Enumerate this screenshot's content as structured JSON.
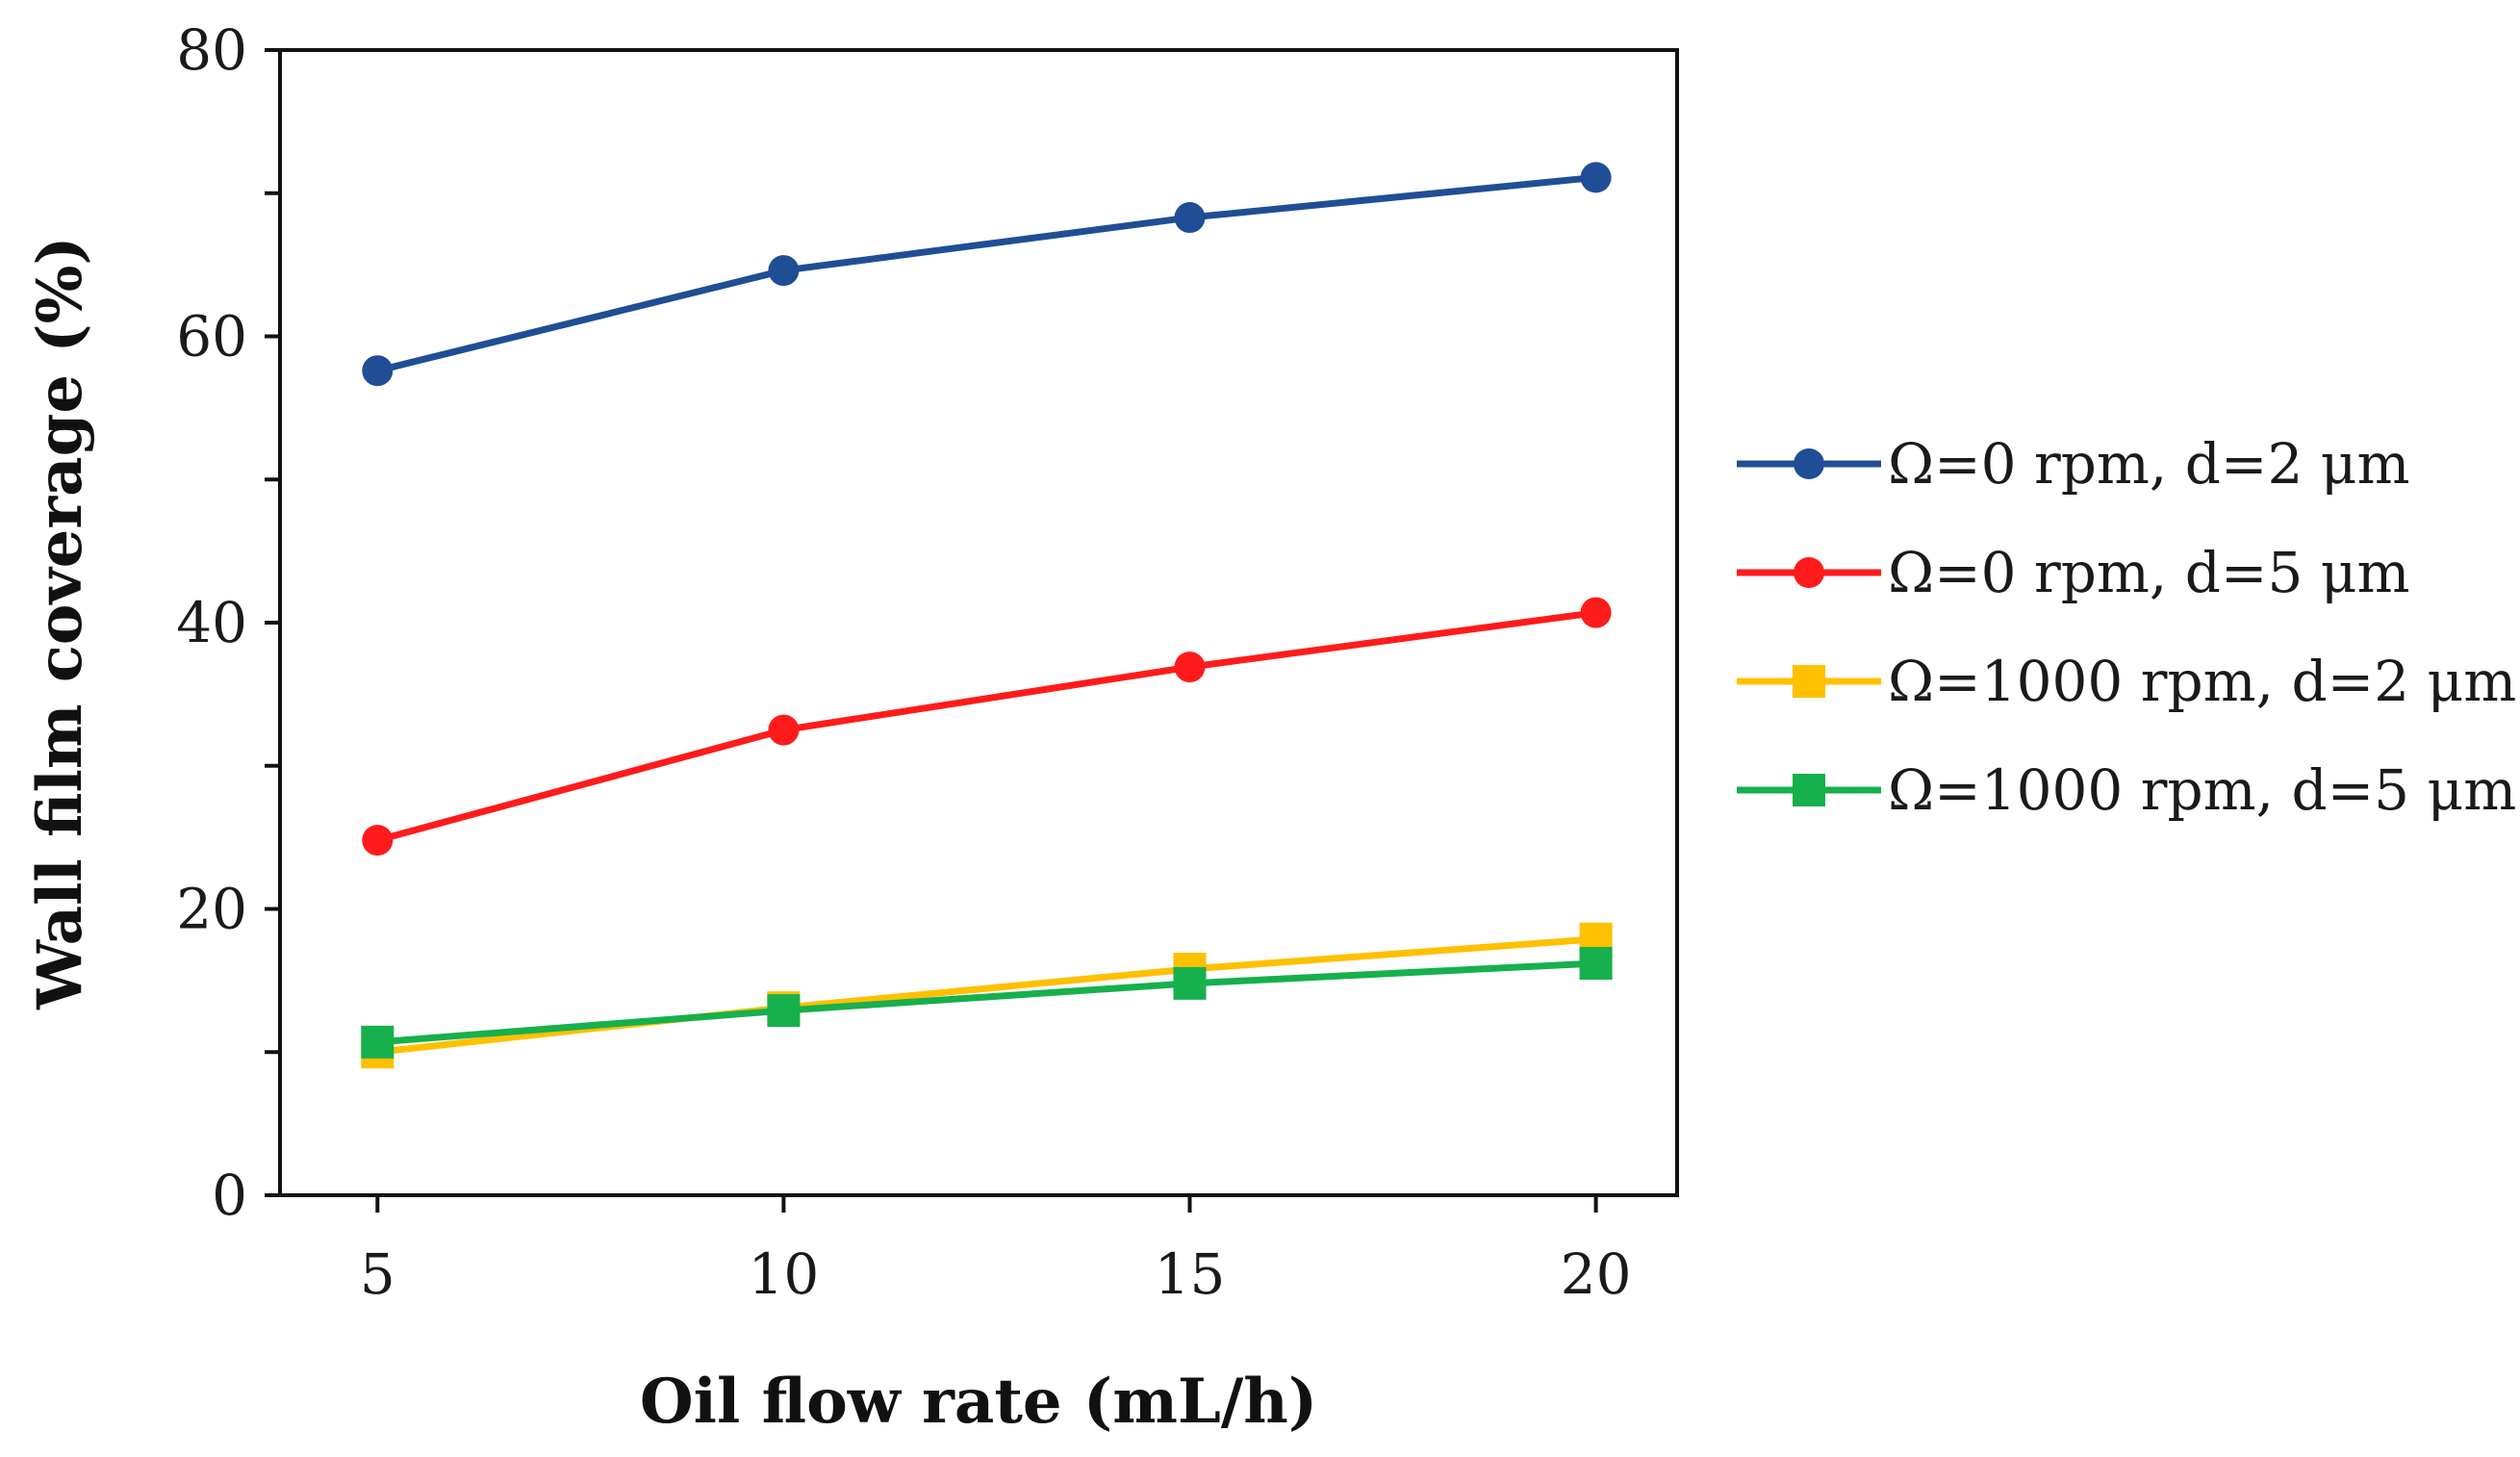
{
  "chart_data": {
    "type": "line",
    "title": "",
    "xlabel": "Oil flow rate (mL/h)",
    "ylabel": "Wall film coverage (%)",
    "x": [
      5,
      10,
      15,
      20
    ],
    "xticks": [
      "5",
      "10",
      "15",
      "20"
    ],
    "yticks": [
      "0",
      "20",
      "40",
      "60",
      "80"
    ],
    "xlim": [
      3.8,
      21
    ],
    "ylim": [
      0,
      80
    ],
    "grid": false,
    "legend_position": "right",
    "series": [
      {
        "name": "Ω=0 rpm, d=2 μm",
        "values": [
          57.6,
          64.6,
          68.3,
          71.1
        ],
        "color": "#1f4e96",
        "marker": "circle"
      },
      {
        "name": "Ω=0 rpm, d=5 μm",
        "values": [
          24.8,
          32.5,
          36.9,
          40.7
        ],
        "color": "#ff1b1b",
        "marker": "circle"
      },
      {
        "name": "Ω=1000 rpm, d=2 μm",
        "values": [
          10.0,
          13.1,
          15.8,
          17.9
        ],
        "color": "#ffc000",
        "marker": "square"
      },
      {
        "name": "Ω=1000 rpm, d=5 μm",
        "values": [
          10.7,
          12.9,
          14.8,
          16.2
        ],
        "color": "#16b04c",
        "marker": "square"
      }
    ]
  }
}
